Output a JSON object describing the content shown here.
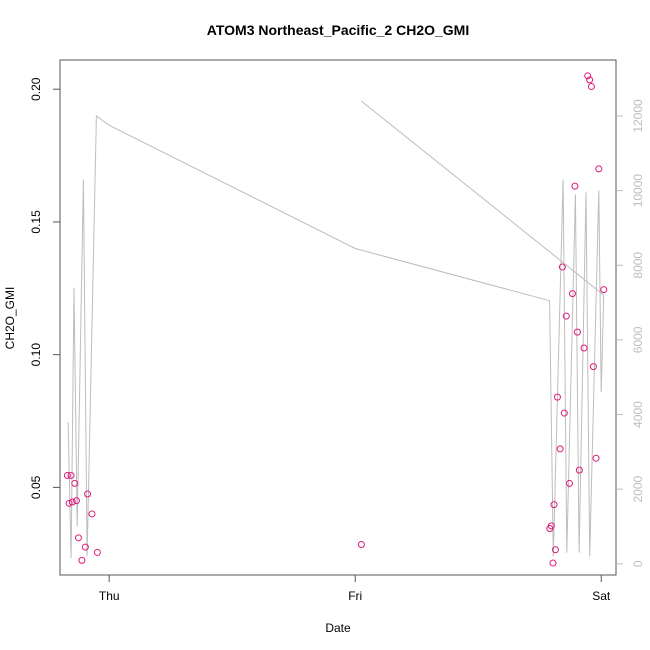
{
  "chart_data": {
    "type": "scatter",
    "title": "ATOM3 Northeast_Pacific_2 CH2O_GMI",
    "xlabel": "Date",
    "ylabel": "CH2O_GMI",
    "x_ticks": [
      {
        "label": "Thu",
        "value": 0.0
      },
      {
        "label": "Fri",
        "value": 1.0
      },
      {
        "label": "Sat",
        "value": 2.0
      }
    ],
    "xlim": [
      -0.2,
      2.06
    ],
    "ylim": [
      0.017,
      0.211
    ],
    "y_ticks": [
      0.05,
      0.1,
      0.15,
      0.2
    ],
    "y2_ticks": [
      0,
      2000,
      4000,
      6000,
      8000,
      10000,
      12000
    ],
    "y2lim": [
      -300,
      13500
    ],
    "grid": false,
    "colors": {
      "points": "#e0197d",
      "altitude_line": "#bdbdbd",
      "axes": "#555555"
    },
    "series": [
      {
        "axis": "left",
        "style": "points",
        "points": [
          {
            "x": -0.17,
            "y": 0.0545
          },
          {
            "x": -0.163,
            "y": 0.044
          },
          {
            "x": -0.155,
            "y": 0.0545
          },
          {
            "x": -0.15,
            "y": 0.0445
          },
          {
            "x": -0.14,
            "y": 0.0515
          },
          {
            "x": -0.133,
            "y": 0.045
          },
          {
            "x": -0.125,
            "y": 0.031
          },
          {
            "x": -0.111,
            "y": 0.0225
          },
          {
            "x": -0.097,
            "y": 0.0275
          },
          {
            "x": -0.088,
            "y": 0.0475
          },
          {
            "x": -0.07,
            "y": 0.04
          },
          {
            "x": -0.048,
            "y": 0.0255
          },
          {
            "x": 1.025,
            "y": 0.0285
          },
          {
            "x": 1.791,
            "y": 0.0345
          },
          {
            "x": 1.797,
            "y": 0.0355
          },
          {
            "x": 1.804,
            "y": 0.0215
          },
          {
            "x": 1.808,
            "y": 0.0435
          },
          {
            "x": 1.814,
            "y": 0.0265
          },
          {
            "x": 1.822,
            "y": 0.084
          },
          {
            "x": 1.833,
            "y": 0.0645
          },
          {
            "x": 1.842,
            "y": 0.133
          },
          {
            "x": 1.85,
            "y": 0.078
          },
          {
            "x": 1.858,
            "y": 0.1145
          },
          {
            "x": 1.871,
            "y": 0.0515
          },
          {
            "x": 1.883,
            "y": 0.123
          },
          {
            "x": 1.893,
            "y": 0.1635
          },
          {
            "x": 1.903,
            "y": 0.1085
          },
          {
            "x": 1.911,
            "y": 0.0565
          },
          {
            "x": 1.93,
            "y": 0.1025
          },
          {
            "x": 1.945,
            "y": 0.205
          },
          {
            "x": 1.953,
            "y": 0.2035
          },
          {
            "x": 1.96,
            "y": 0.201
          },
          {
            "x": 1.968,
            "y": 0.0955
          },
          {
            "x": 1.979,
            "y": 0.061
          },
          {
            "x": 1.99,
            "y": 0.17
          },
          {
            "x": 2.01,
            "y": 0.1245
          }
        ]
      },
      {
        "axis": "right",
        "style": "line",
        "points": [
          {
            "x": -0.167,
            "y": 3800
          },
          {
            "x": -0.155,
            "y": 150
          },
          {
            "x": -0.143,
            "y": 7400
          },
          {
            "x": -0.13,
            "y": 1000
          },
          {
            "x": -0.105,
            "y": 10300
          },
          {
            "x": -0.09,
            "y": 200
          },
          {
            "x": -0.052,
            "y": 12000
          },
          {
            "x": 0.0,
            "y": 11750
          },
          {
            "x": 1.0,
            "y": 8450
          },
          {
            "x": 1.79,
            "y": 7050
          },
          {
            "x": 1.805,
            "y": 200
          },
          {
            "x": 1.845,
            "y": 10300
          },
          {
            "x": 1.86,
            "y": 300
          },
          {
            "x": 1.895,
            "y": 9900
          },
          {
            "x": 1.91,
            "y": 300
          },
          {
            "x": 1.938,
            "y": 9950
          },
          {
            "x": 1.953,
            "y": 200
          },
          {
            "x": 1.99,
            "y": 10000
          },
          {
            "x": 2.0,
            "y": 4600
          },
          {
            "x": 2.01,
            "y": 7200
          },
          {
            "x": 1.025,
            "y": 12400
          }
        ]
      }
    ]
  }
}
